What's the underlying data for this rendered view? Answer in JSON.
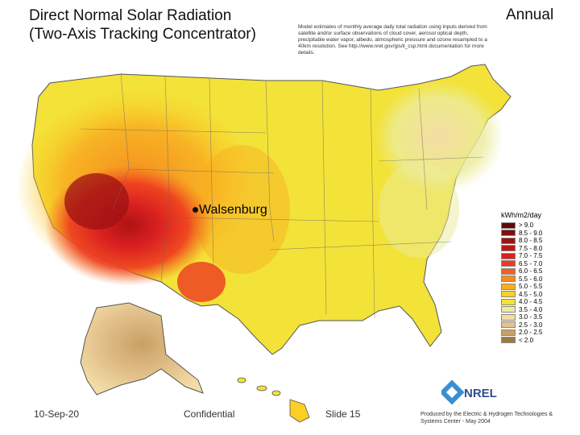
{
  "title": {
    "line1": "Direct Normal Solar Radiation",
    "line2": "(Two-Axis Tracking Concentrator)"
  },
  "period": "Annual",
  "description": "Model estimates of monthly average daily total radiation using inputs derived from satellite and/or surface observations of cloud cover, aerosol optical depth, precipitable water vapor, albedo, atmospheric pressure and ozone resampled to a 40km resolution. See http://www.nrel.gov/gis/il_csp.html documentation for more details.",
  "marker": {
    "label": "Walsenburg"
  },
  "legend": {
    "title": "kWh/m2/day",
    "items": [
      {
        "label": "> 9.0",
        "color": "#5e0a0a"
      },
      {
        "label": "8.5 - 9.0",
        "color": "#7c0f0f"
      },
      {
        "label": "8.0 - 8.5",
        "color": "#9c1212"
      },
      {
        "label": "7.5 - 8.0",
        "color": "#bd1515"
      },
      {
        "label": "7.0 - 7.5",
        "color": "#d92020"
      },
      {
        "label": "6.5 - 7.0",
        "color": "#ee3a20"
      },
      {
        "label": "6.0 - 6.5",
        "color": "#f2621e"
      },
      {
        "label": "5.5 - 6.0",
        "color": "#f58a1f"
      },
      {
        "label": "5.0 - 5.5",
        "color": "#f8ae22"
      },
      {
        "label": "4.5 - 5.0",
        "color": "#fbd023"
      },
      {
        "label": "4.0 - 4.5",
        "color": "#f3e238"
      },
      {
        "label": "3.5 - 4.0",
        "color": "#ecec9c"
      },
      {
        "label": "3.0 - 3.5",
        "color": "#f3dca6"
      },
      {
        "label": "2.5 - 3.0",
        "color": "#e3c28c"
      },
      {
        "label": "2.0 - 2.5",
        "color": "#c9a064"
      },
      {
        "label": "< 2.0",
        "color": "#9f7a3e"
      }
    ]
  },
  "footer": {
    "date": "10-Sep-20",
    "center": "Confidential",
    "slide": "Slide 15"
  },
  "logo": {
    "text": "NREL"
  },
  "credit": "Produced by the Electric & Hydrogen Technologies & Systems Center - May 2004"
}
